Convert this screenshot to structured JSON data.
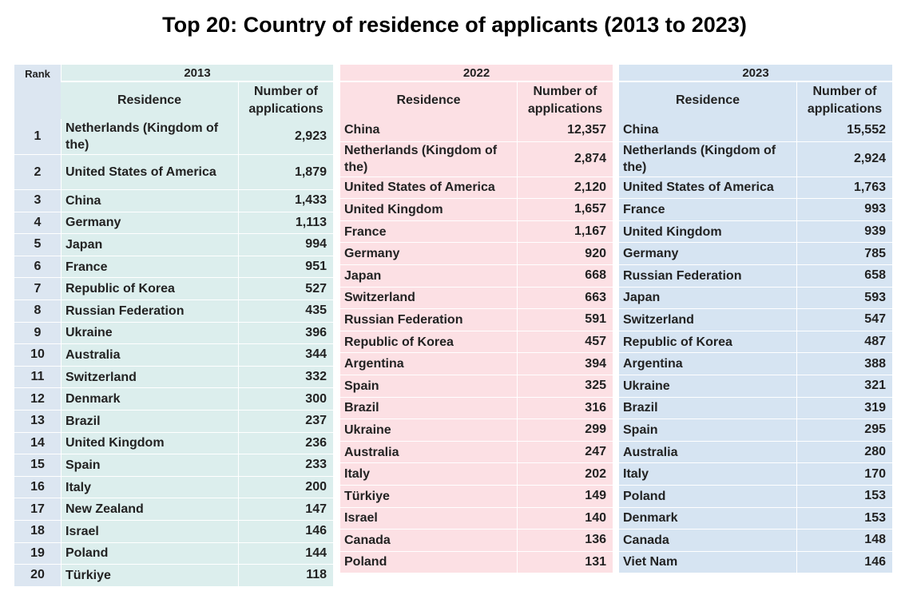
{
  "title": "Top 20:  Country of residence of applicants (2013 to 2023)",
  "headers": {
    "rank": "Rank",
    "residence": "Residence",
    "applications": "Number of applications"
  },
  "tables": [
    {
      "year": "2013",
      "rows": [
        {
          "rank": "1",
          "residence": "Netherlands (Kingdom of the)",
          "applications": "2,923"
        },
        {
          "rank": "2",
          "residence": "United States of America",
          "applications": "1,879"
        },
        {
          "rank": "3",
          "residence": "China",
          "applications": "1,433"
        },
        {
          "rank": "4",
          "residence": "Germany",
          "applications": "1,113"
        },
        {
          "rank": "5",
          "residence": "Japan",
          "applications": "994"
        },
        {
          "rank": "6",
          "residence": "France",
          "applications": "951"
        },
        {
          "rank": "7",
          "residence": "Republic of Korea",
          "applications": "527"
        },
        {
          "rank": "8",
          "residence": "Russian Federation",
          "applications": "435"
        },
        {
          "rank": "9",
          "residence": "Ukraine",
          "applications": "396"
        },
        {
          "rank": "10",
          "residence": "Australia",
          "applications": "344"
        },
        {
          "rank": "11",
          "residence": "Switzerland",
          "applications": "332"
        },
        {
          "rank": "12",
          "residence": "Denmark",
          "applications": "300"
        },
        {
          "rank": "13",
          "residence": "Brazil",
          "applications": "237"
        },
        {
          "rank": "14",
          "residence": "United Kingdom",
          "applications": "236"
        },
        {
          "rank": "15",
          "residence": "Spain",
          "applications": "233"
        },
        {
          "rank": "16",
          "residence": "Italy",
          "applications": "200"
        },
        {
          "rank": "17",
          "residence": "New Zealand",
          "applications": "147"
        },
        {
          "rank": "18",
          "residence": "Israel",
          "applications": "146"
        },
        {
          "rank": "19",
          "residence": "Poland",
          "applications": "144"
        },
        {
          "rank": "20",
          "residence": "Türkiye",
          "applications": "118"
        }
      ]
    },
    {
      "year": "2022",
      "rows": [
        {
          "residence": "China",
          "applications": "12,357"
        },
        {
          "residence": "Netherlands (Kingdom of the)",
          "applications": "2,874"
        },
        {
          "residence": "United States of America",
          "applications": "2,120"
        },
        {
          "residence": "United Kingdom",
          "applications": "1,657"
        },
        {
          "residence": "France",
          "applications": "1,167"
        },
        {
          "residence": "Germany",
          "applications": "920"
        },
        {
          "residence": "Japan",
          "applications": "668"
        },
        {
          "residence": "Switzerland",
          "applications": "663"
        },
        {
          "residence": "Russian Federation",
          "applications": "591"
        },
        {
          "residence": "Republic of Korea",
          "applications": "457"
        },
        {
          "residence": "Argentina",
          "applications": "394"
        },
        {
          "residence": "Spain",
          "applications": "325"
        },
        {
          "residence": "Brazil",
          "applications": "316"
        },
        {
          "residence": "Ukraine",
          "applications": "299"
        },
        {
          "residence": "Australia",
          "applications": "247"
        },
        {
          "residence": "Italy",
          "applications": "202"
        },
        {
          "residence": "Türkiye",
          "applications": "149"
        },
        {
          "residence": "Israel",
          "applications": "140"
        },
        {
          "residence": "Canada",
          "applications": "136"
        },
        {
          "residence": "Poland",
          "applications": "131"
        }
      ]
    },
    {
      "year": "2023",
      "rows": [
        {
          "residence": "China",
          "applications": "15,552"
        },
        {
          "residence": "Netherlands (Kingdom of the)",
          "applications": "2,924"
        },
        {
          "residence": "United States of America",
          "applications": "1,763"
        },
        {
          "residence": "France",
          "applications": "993"
        },
        {
          "residence": "United Kingdom",
          "applications": "939"
        },
        {
          "residence": "Germany",
          "applications": "785"
        },
        {
          "residence": "Russian Federation",
          "applications": "658"
        },
        {
          "residence": "Japan",
          "applications": "593"
        },
        {
          "residence": "Switzerland",
          "applications": "547"
        },
        {
          "residence": "Republic of Korea",
          "applications": "487"
        },
        {
          "residence": "Argentina",
          "applications": "388"
        },
        {
          "residence": "Ukraine",
          "applications": "321"
        },
        {
          "residence": "Brazil",
          "applications": "319"
        },
        {
          "residence": "Spain",
          "applications": "295"
        },
        {
          "residence": "Australia",
          "applications": "280"
        },
        {
          "residence": "Italy",
          "applications": "170"
        },
        {
          "residence": "Poland",
          "applications": "153"
        },
        {
          "residence": "Denmark",
          "applications": "153"
        },
        {
          "residence": "Canada",
          "applications": "148"
        },
        {
          "residence": "Viet Nam",
          "applications": "146"
        }
      ]
    }
  ]
}
